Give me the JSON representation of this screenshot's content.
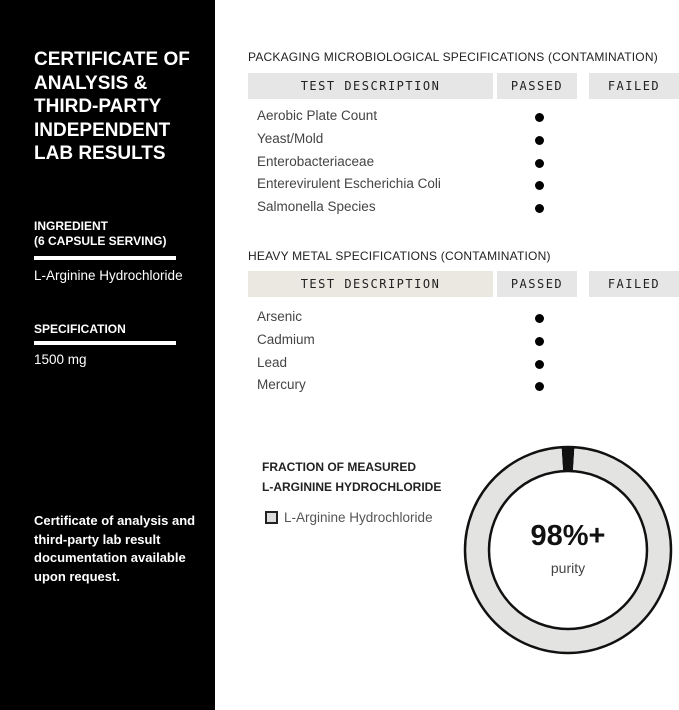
{
  "sidebar": {
    "title": "CERTIFICATE OF ANALYSIS & THIRD-PARTY INDEPENDENT LAB RESULTS",
    "ingredient_label_1": "INGREDIENT",
    "ingredient_label_2": "(6 CAPSULE SERVING)",
    "ingredient_value": "L-Arginine Hydrochloride",
    "spec_label": "SPECIFICATION",
    "spec_value": "1500 mg",
    "note": "Certificate of analysis and third-party lab result documentation available upon request."
  },
  "tables": [
    {
      "title": "PACKAGING MICROBIOLOGICAL SPECIFICATIONS (CONTAMINATION)",
      "headers": [
        "TEST DESCRIPTION",
        "PASSED",
        "FAILED"
      ],
      "rows": [
        {
          "test": "Aerobic Plate Count",
          "result": "passed"
        },
        {
          "test": "Yeast/Mold",
          "result": "passed"
        },
        {
          "test": "Enterobacteriaceae",
          "result": "passed"
        },
        {
          "test": "Enterevirulent Escherichia Coli",
          "result": "passed"
        },
        {
          "test": "Salmonella Species",
          "result": "passed"
        }
      ]
    },
    {
      "title": "HEAVY METAL SPECIFICATIONS (CONTAMINATION)",
      "headers": [
        "TEST DESCRIPTION",
        "PASSED",
        "FAILED"
      ],
      "rows": [
        {
          "test": "Arsenic",
          "result": "passed"
        },
        {
          "test": "Cadmium",
          "result": "passed"
        },
        {
          "test": "Lead",
          "result": "passed"
        },
        {
          "test": "Mercury",
          "result": "passed"
        }
      ]
    }
  ],
  "chart_data": {
    "type": "pie",
    "title": "FRACTION OF MEASURED L-ARGININE HYDROCHLORIDE",
    "title_line1": "FRACTION OF MEASURED",
    "title_line2": "L-ARGININE HYDROCHLORIDE",
    "legend": [
      "L-Arginine Hydrochloride"
    ],
    "values": [
      98,
      2
    ],
    "colors": [
      "#e3e3e1",
      "#111111"
    ],
    "center_value": "98%+",
    "center_label": "purity"
  }
}
